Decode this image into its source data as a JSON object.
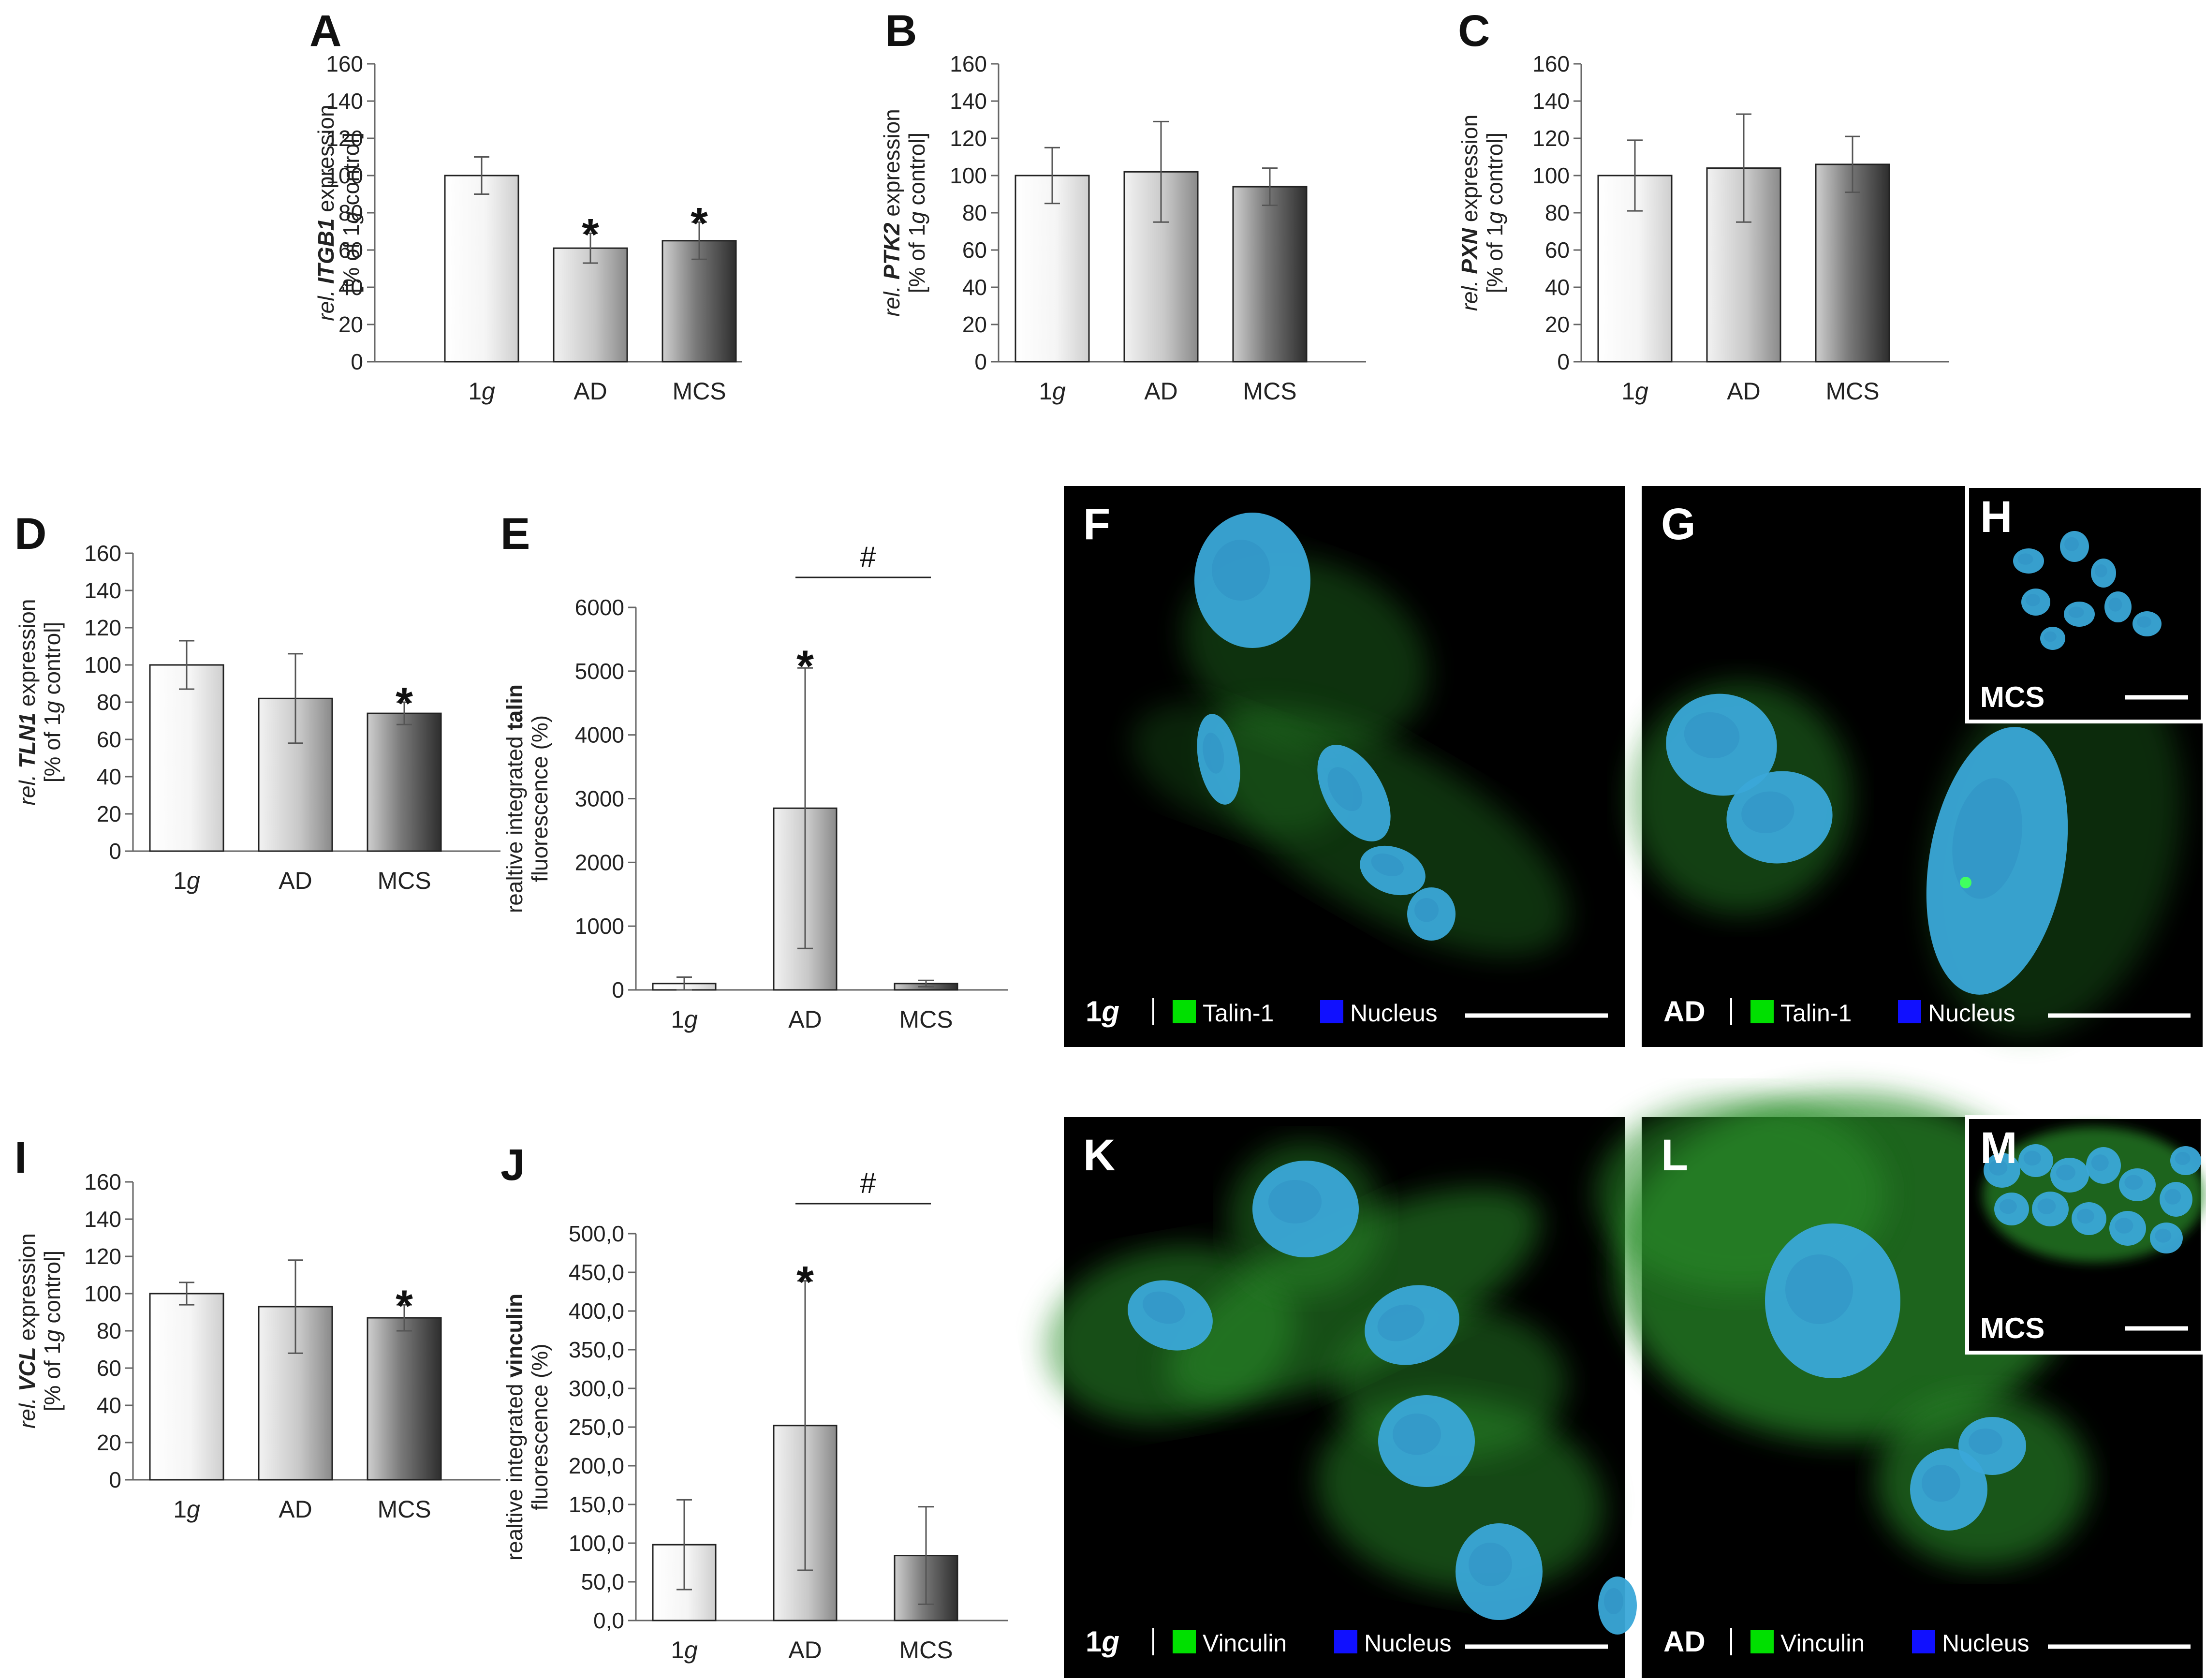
{
  "chart_data": [
    {
      "panel": "A",
      "type": "bar",
      "categories": [
        "1g",
        "AD",
        "MCS"
      ],
      "values": [
        100,
        61,
        65
      ],
      "errors": [
        10,
        8,
        10
      ],
      "significance": [
        "",
        "*",
        "*"
      ],
      "ylabel": "rel. ITGB1 expression [% of 1g control]",
      "ylim": [
        0,
        160
      ]
    },
    {
      "panel": "B",
      "type": "bar",
      "categories": [
        "1g",
        "AD",
        "MCS"
      ],
      "values": [
        100,
        102,
        94
      ],
      "errors": [
        15,
        27,
        10
      ],
      "significance": [
        "",
        "",
        ""
      ],
      "ylabel": "rel. PTK2 expression [% of 1g control]",
      "ylim": [
        0,
        160
      ]
    },
    {
      "panel": "C",
      "type": "bar",
      "categories": [
        "1g",
        "AD",
        "MCS"
      ],
      "values": [
        100,
        104,
        106
      ],
      "errors": [
        19,
        29,
        15
      ],
      "significance": [
        "",
        "",
        ""
      ],
      "ylabel": "rel. PXN expression [% of 1g control]",
      "ylim": [
        0,
        160
      ]
    },
    {
      "panel": "D",
      "type": "bar",
      "categories": [
        "1g",
        "AD",
        "MCS"
      ],
      "values": [
        100,
        82,
        74
      ],
      "errors": [
        13,
        24,
        6
      ],
      "significance": [
        "",
        "",
        "*"
      ],
      "ylabel": "rel. TLN1 expression [% of 1g control]",
      "ylim": [
        0,
        160
      ]
    },
    {
      "panel": "E",
      "type": "bar",
      "categories": [
        "1g",
        "AD",
        "MCS"
      ],
      "values": [
        100,
        2850,
        100
      ],
      "errors": [
        100,
        2200,
        50
      ],
      "significance": [
        "",
        "*",
        ""
      ],
      "bracket": {
        "from": "AD",
        "to": "MCS",
        "label": "#"
      },
      "ylabel": "realtive integrated talin fluorescence (%)",
      "ylim": [
        0,
        6000
      ]
    },
    {
      "panel": "I",
      "type": "bar",
      "categories": [
        "1g",
        "AD",
        "MCS"
      ],
      "values": [
        100,
        93,
        87
      ],
      "errors": [
        6,
        25,
        7
      ],
      "significance": [
        "",
        "",
        "*"
      ],
      "ylabel": "rel. VCL expression [% of 1g control]",
      "ylim": [
        0,
        160
      ]
    },
    {
      "panel": "J",
      "type": "bar",
      "categories": [
        "1g",
        "AD",
        "MCS"
      ],
      "values": [
        98,
        252,
        84
      ],
      "errors": [
        58,
        187,
        63
      ],
      "significance": [
        "",
        "*",
        ""
      ],
      "bracket": {
        "from": "AD",
        "to": "MCS",
        "label": "#"
      },
      "ylabel": "realtive integrated vinculin fluorescence (%)",
      "ylim": [
        0,
        500
      ]
    }
  ],
  "micrographs": {
    "F": {
      "letter": "F",
      "condition": "1g",
      "legend": [
        "Talin-1",
        "Nucleus"
      ]
    },
    "G": {
      "letter": "G",
      "condition": "AD",
      "legend": [
        "Talin-1",
        "Nucleus"
      ]
    },
    "H": {
      "letter": "H",
      "inset_label": "MCS"
    },
    "K": {
      "letter": "K",
      "condition": "1g",
      "legend": [
        "Vinculin",
        "Nucleus"
      ]
    },
    "L": {
      "letter": "L",
      "condition": "AD",
      "legend": [
        "Vinculin",
        "Nucleus"
      ]
    },
    "M": {
      "letter": "M",
      "inset_label": "MCS"
    }
  },
  "colors": {
    "protein_channel": "#00e000",
    "nucleus_channel": "#1010ff",
    "cell_glow": "#2a8f2a",
    "nucleus_fill": "#3aa8d8"
  }
}
